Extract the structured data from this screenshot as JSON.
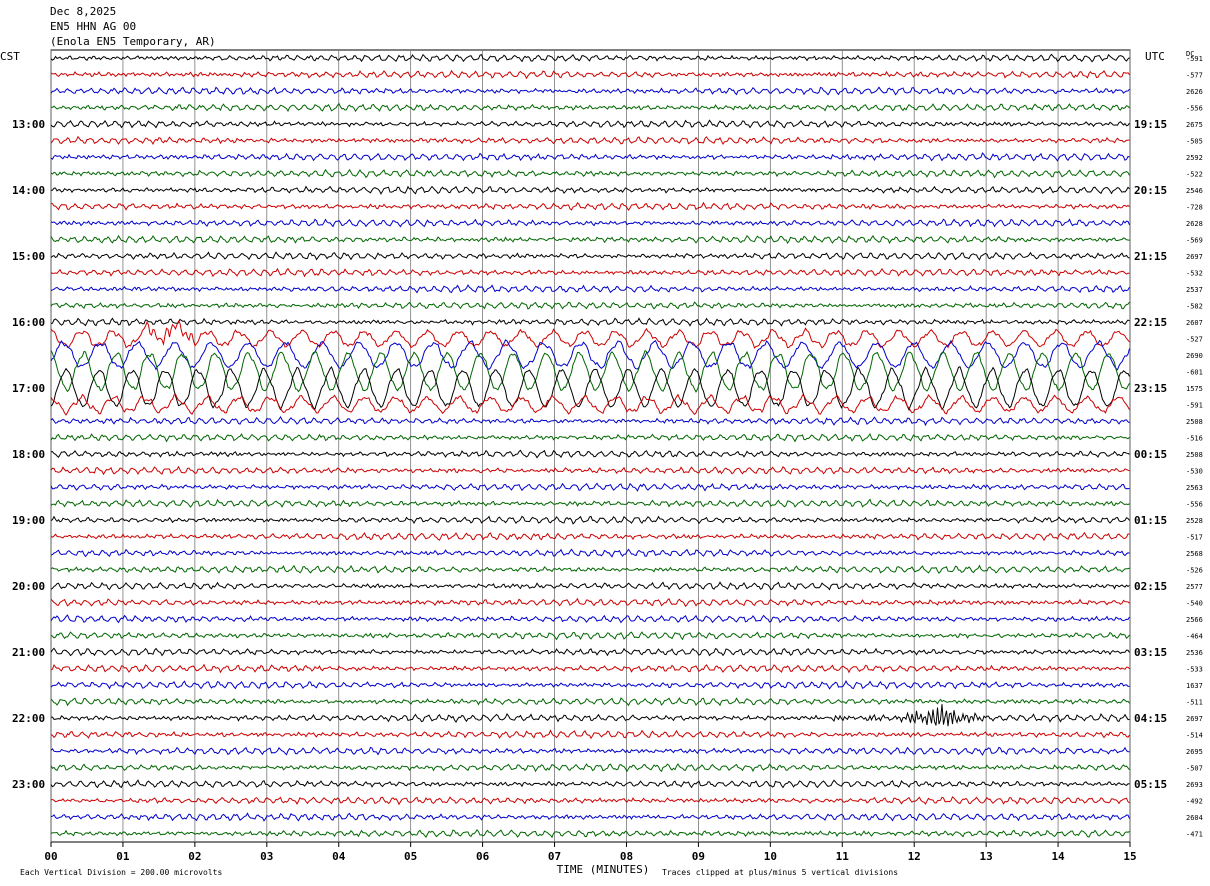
{
  "header": {
    "date": "Dec 8,2025",
    "station": "EN5 HHN AG 00",
    "location": "(Enola EN5 Temporary, AR)"
  },
  "chart_data": {
    "type": "line",
    "title": "EN5 HHN AG 00",
    "left_timezone": "CST",
    "right_timezone": "UTC",
    "dc_label": "DC",
    "xlabel": "TIME (MINUTES)",
    "xlim": [
      0,
      15
    ],
    "x_ticks": [
      "00",
      "01",
      "02",
      "03",
      "04",
      "05",
      "06",
      "07",
      "08",
      "09",
      "10",
      "11",
      "12",
      "13",
      "14",
      "15"
    ],
    "grid": true,
    "trace_colors": [
      "#000000",
      "#cc0000",
      "#0000cc",
      "#006600"
    ],
    "left_hour_labels": [
      "13:00",
      "14:00",
      "15:00",
      "16:00",
      "17:00",
      "18:00",
      "19:00",
      "20:00",
      "21:00",
      "22:00",
      "23:00"
    ],
    "right_hour_labels": [
      "19:15",
      "20:15",
      "21:15",
      "22:15",
      "23:15",
      "00:15",
      "01:15",
      "02:15",
      "03:15",
      "04:15",
      "05:15"
    ],
    "dc_offsets": [
      "-591",
      "-577",
      "2626",
      "-556",
      "2675",
      "-505",
      "2592",
      "-522",
      "2546",
      "-728",
      "2628",
      "-569",
      "2697",
      "-532",
      "2537",
      "-582",
      "2607",
      "-527",
      "2690",
      "-601",
      "1575",
      "-591",
      "2508",
      "-516",
      "2508",
      "-530",
      "2563",
      "-556",
      "2528",
      "-517",
      "2568",
      "-526",
      "2577",
      "-540",
      "2566",
      "-464",
      "2536",
      "-533",
      "1637",
      "-511",
      "2697",
      "-514",
      "2695",
      "-507",
      "2693",
      "-492",
      "2604",
      "-471"
    ],
    "scale_note": "Each Vertical Division =  200.00 microvolts",
    "clip_note": "Traces clipped at plus/minus 5 vertical divisions",
    "events": [
      {
        "trace_index": 40,
        "minute_start": 10.8,
        "minute_end": 13.1,
        "peak_minute": 12.35,
        "description": "local event"
      }
    ],
    "large_motion_traces": [
      17,
      18,
      19,
      20,
      21
    ]
  }
}
